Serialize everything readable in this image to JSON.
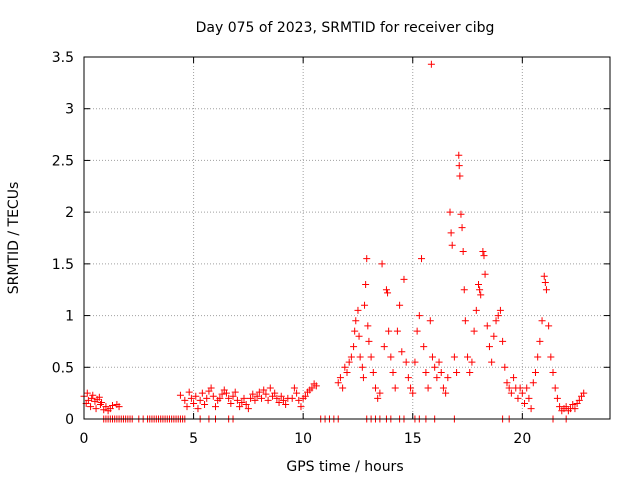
{
  "chart_data": {
    "type": "scatter",
    "title": "Day 075 of 2023, SRMTID for receiver cibg",
    "xlabel": "GPS time / hours",
    "ylabel": "SRMTID / TECUs",
    "xlim": [
      0,
      24
    ],
    "ylim": [
      0,
      3.5
    ],
    "xticks": [
      "0",
      "5",
      "10",
      "15",
      "20"
    ],
    "xtick_values": [
      0,
      5,
      10,
      15,
      20
    ],
    "yticks": [
      "0",
      "0.5",
      "1",
      "1.5",
      "2",
      "2.5",
      "3",
      "3.5"
    ],
    "ytick_values": [
      0,
      0.5,
      1,
      1.5,
      2,
      2.5,
      3,
      3.5
    ],
    "grid": true,
    "marker": "+",
    "color": "#ff0000",
    "series": [
      {
        "name": "SRMTID",
        "points": [
          [
            0.0,
            0.22
          ],
          [
            0.1,
            0.15
          ],
          [
            0.15,
            0.25
          ],
          [
            0.2,
            0.18
          ],
          [
            0.3,
            0.12
          ],
          [
            0.35,
            0.2
          ],
          [
            0.4,
            0.23
          ],
          [
            0.5,
            0.17
          ],
          [
            0.55,
            0.1
          ],
          [
            0.6,
            0.19
          ],
          [
            0.7,
            0.21
          ],
          [
            0.75,
            0.14
          ],
          [
            0.8,
            0.16
          ],
          [
            0.9,
            0.09
          ],
          [
            1.0,
            0.12
          ],
          [
            1.1,
            0.08
          ],
          [
            1.2,
            0.1
          ],
          [
            1.3,
            0.13
          ],
          [
            1.5,
            0.14
          ],
          [
            1.6,
            0.12
          ],
          [
            0.9,
            0.0
          ],
          [
            1.0,
            0.0
          ],
          [
            1.1,
            0.0
          ],
          [
            1.2,
            0.0
          ],
          [
            1.3,
            0.0
          ],
          [
            1.4,
            0.0
          ],
          [
            1.5,
            0.0
          ],
          [
            1.6,
            0.0
          ],
          [
            1.7,
            0.0
          ],
          [
            1.8,
            0.0
          ],
          [
            1.9,
            0.0
          ],
          [
            2.0,
            0.0
          ],
          [
            2.1,
            0.0
          ],
          [
            2.2,
            0.0
          ],
          [
            2.5,
            0.0
          ],
          [
            2.7,
            0.0
          ],
          [
            2.9,
            0.0
          ],
          [
            3.0,
            0.0
          ],
          [
            3.1,
            0.0
          ],
          [
            3.2,
            0.0
          ],
          [
            3.3,
            0.0
          ],
          [
            3.4,
            0.0
          ],
          [
            3.5,
            0.0
          ],
          [
            3.6,
            0.0
          ],
          [
            3.7,
            0.0
          ],
          [
            3.8,
            0.0
          ],
          [
            3.9,
            0.0
          ],
          [
            4.0,
            0.0
          ],
          [
            4.1,
            0.0
          ],
          [
            4.2,
            0.0
          ],
          [
            4.3,
            0.0
          ],
          [
            4.4,
            0.0
          ],
          [
            4.5,
            0.0
          ],
          [
            4.6,
            0.0
          ],
          [
            5.3,
            0.0
          ],
          [
            5.7,
            0.0
          ],
          [
            6.0,
            0.0
          ],
          [
            6.6,
            0.0
          ],
          [
            6.8,
            0.0
          ],
          [
            4.4,
            0.23
          ],
          [
            4.6,
            0.18
          ],
          [
            4.7,
            0.12
          ],
          [
            4.8,
            0.26
          ],
          [
            4.9,
            0.2
          ],
          [
            5.0,
            0.15
          ],
          [
            5.1,
            0.22
          ],
          [
            5.2,
            0.1
          ],
          [
            5.3,
            0.18
          ],
          [
            5.4,
            0.25
          ],
          [
            5.5,
            0.14
          ],
          [
            5.6,
            0.2
          ],
          [
            5.7,
            0.27
          ],
          [
            5.8,
            0.3
          ],
          [
            5.9,
            0.22
          ],
          [
            6.0,
            0.12
          ],
          [
            6.1,
            0.18
          ],
          [
            6.2,
            0.2
          ],
          [
            6.3,
            0.24
          ],
          [
            6.4,
            0.28
          ],
          [
            6.5,
            0.25
          ],
          [
            6.6,
            0.2
          ],
          [
            6.7,
            0.15
          ],
          [
            6.8,
            0.22
          ],
          [
            6.9,
            0.26
          ],
          [
            7.0,
            0.18
          ],
          [
            7.1,
            0.12
          ],
          [
            7.2,
            0.16
          ],
          [
            7.3,
            0.2
          ],
          [
            7.4,
            0.14
          ],
          [
            7.5,
            0.1
          ],
          [
            7.6,
            0.2
          ],
          [
            7.7,
            0.24
          ],
          [
            7.8,
            0.18
          ],
          [
            7.9,
            0.22
          ],
          [
            8.0,
            0.26
          ],
          [
            8.1,
            0.2
          ],
          [
            8.2,
            0.28
          ],
          [
            8.3,
            0.24
          ],
          [
            8.4,
            0.18
          ],
          [
            8.5,
            0.3
          ],
          [
            8.6,
            0.22
          ],
          [
            8.7,
            0.25
          ],
          [
            8.8,
            0.2
          ],
          [
            8.9,
            0.16
          ],
          [
            9.0,
            0.22
          ],
          [
            9.1,
            0.18
          ],
          [
            9.2,
            0.14
          ],
          [
            9.3,
            0.2
          ],
          [
            9.5,
            0.2
          ],
          [
            9.6,
            0.3
          ],
          [
            9.7,
            0.25
          ],
          [
            9.8,
            0.18
          ],
          [
            9.9,
            0.12
          ],
          [
            10.0,
            0.2
          ],
          [
            10.1,
            0.22
          ],
          [
            10.2,
            0.26
          ],
          [
            10.3,
            0.28
          ],
          [
            10.4,
            0.3
          ],
          [
            10.5,
            0.34
          ],
          [
            10.6,
            0.32
          ],
          [
            10.8,
            0.0
          ],
          [
            11.0,
            0.0
          ],
          [
            11.2,
            0.0
          ],
          [
            11.4,
            0.0
          ],
          [
            11.6,
            0.0
          ],
          [
            11.6,
            0.35
          ],
          [
            11.7,
            0.4
          ],
          [
            11.8,
            0.3
          ],
          [
            11.9,
            0.5
          ],
          [
            12.0,
            0.45
          ],
          [
            12.1,
            0.55
          ],
          [
            12.2,
            0.6
          ],
          [
            12.3,
            0.7
          ],
          [
            12.35,
            0.85
          ],
          [
            12.4,
            0.95
          ],
          [
            12.5,
            1.05
          ],
          [
            12.55,
            0.8
          ],
          [
            12.6,
            0.6
          ],
          [
            12.7,
            0.5
          ],
          [
            12.75,
            0.4
          ],
          [
            12.8,
            1.1
          ],
          [
            12.85,
            1.3
          ],
          [
            12.9,
            1.55
          ],
          [
            12.95,
            0.9
          ],
          [
            13.0,
            0.75
          ],
          [
            13.1,
            0.6
          ],
          [
            13.2,
            0.45
          ],
          [
            13.3,
            0.3
          ],
          [
            13.4,
            0.2
          ],
          [
            13.5,
            0.25
          ],
          [
            13.6,
            1.5
          ],
          [
            13.7,
            0.7
          ],
          [
            13.8,
            1.25
          ],
          [
            13.85,
            1.22
          ],
          [
            13.9,
            0.85
          ],
          [
            14.0,
            0.6
          ],
          [
            14.1,
            0.45
          ],
          [
            14.2,
            0.3
          ],
          [
            14.3,
            0.85
          ],
          [
            14.4,
            1.1
          ],
          [
            14.5,
            0.65
          ],
          [
            14.6,
            1.35
          ],
          [
            14.7,
            0.55
          ],
          [
            14.8,
            0.4
          ],
          [
            14.9,
            0.3
          ],
          [
            15.0,
            0.25
          ],
          [
            15.1,
            0.55
          ],
          [
            15.2,
            0.85
          ],
          [
            15.3,
            1.0
          ],
          [
            15.4,
            1.55
          ],
          [
            15.5,
            0.7
          ],
          [
            15.6,
            0.45
          ],
          [
            15.7,
            0.3
          ],
          [
            15.8,
            0.95
          ],
          [
            15.85,
            3.43
          ],
          [
            15.9,
            0.6
          ],
          [
            16.0,
            0.5
          ],
          [
            16.1,
            0.4
          ],
          [
            16.2,
            0.55
          ],
          [
            16.3,
            0.45
          ],
          [
            16.4,
            0.3
          ],
          [
            16.5,
            0.25
          ],
          [
            16.6,
            0.4
          ],
          [
            16.7,
            2.0
          ],
          [
            16.75,
            1.8
          ],
          [
            16.8,
            1.68
          ],
          [
            16.9,
            0.6
          ],
          [
            17.0,
            0.45
          ],
          [
            17.1,
            2.55
          ],
          [
            17.12,
            2.45
          ],
          [
            17.15,
            2.35
          ],
          [
            17.2,
            1.98
          ],
          [
            17.25,
            1.85
          ],
          [
            17.3,
            1.62
          ],
          [
            17.35,
            1.25
          ],
          [
            17.4,
            0.95
          ],
          [
            17.5,
            0.6
          ],
          [
            17.6,
            0.45
          ],
          [
            17.7,
            0.55
          ],
          [
            17.8,
            0.85
          ],
          [
            17.9,
            1.05
          ],
          [
            18.0,
            1.3
          ],
          [
            18.05,
            1.25
          ],
          [
            18.1,
            1.2
          ],
          [
            18.2,
            1.62
          ],
          [
            18.25,
            1.58
          ],
          [
            18.3,
            1.4
          ],
          [
            18.4,
            0.9
          ],
          [
            18.5,
            0.7
          ],
          [
            18.6,
            0.55
          ],
          [
            18.7,
            0.8
          ],
          [
            18.8,
            0.95
          ],
          [
            18.9,
            1.0
          ],
          [
            19.0,
            1.05
          ],
          [
            19.1,
            0.75
          ],
          [
            19.2,
            0.5
          ],
          [
            19.3,
            0.35
          ],
          [
            19.4,
            0.3
          ],
          [
            19.5,
            0.25
          ],
          [
            19.6,
            0.4
          ],
          [
            19.7,
            0.3
          ],
          [
            19.8,
            0.2
          ],
          [
            19.9,
            0.3
          ],
          [
            20.0,
            0.25
          ],
          [
            20.1,
            0.15
          ],
          [
            20.2,
            0.3
          ],
          [
            20.3,
            0.2
          ],
          [
            20.4,
            0.1
          ],
          [
            20.5,
            0.35
          ],
          [
            20.6,
            0.45
          ],
          [
            20.7,
            0.6
          ],
          [
            20.8,
            0.75
          ],
          [
            20.9,
            0.95
          ],
          [
            21.0,
            1.38
          ],
          [
            21.05,
            1.32
          ],
          [
            21.1,
            1.25
          ],
          [
            21.2,
            0.9
          ],
          [
            21.3,
            0.6
          ],
          [
            21.4,
            0.45
          ],
          [
            21.5,
            0.3
          ],
          [
            21.6,
            0.2
          ],
          [
            21.7,
            0.12
          ],
          [
            21.8,
            0.08
          ],
          [
            21.9,
            0.1
          ],
          [
            22.0,
            0.12
          ],
          [
            22.1,
            0.08
          ],
          [
            22.2,
            0.1
          ],
          [
            22.3,
            0.14
          ],
          [
            22.4,
            0.1
          ],
          [
            22.5,
            0.15
          ],
          [
            22.6,
            0.18
          ],
          [
            22.7,
            0.22
          ],
          [
            22.8,
            0.25
          ],
          [
            12.9,
            0.0
          ],
          [
            13.1,
            0.0
          ],
          [
            13.3,
            0.0
          ],
          [
            13.5,
            0.0
          ],
          [
            13.8,
            0.0
          ],
          [
            14.0,
            0.0
          ],
          [
            14.4,
            0.0
          ],
          [
            14.6,
            0.0
          ],
          [
            15.1,
            0.0
          ],
          [
            15.3,
            0.0
          ],
          [
            15.6,
            0.0
          ],
          [
            16.0,
            0.0
          ],
          [
            16.9,
            0.0
          ],
          [
            19.1,
            0.0
          ],
          [
            19.4,
            0.0
          ],
          [
            21.4,
            0.0
          ],
          [
            22.0,
            0.0
          ]
        ]
      }
    ]
  }
}
